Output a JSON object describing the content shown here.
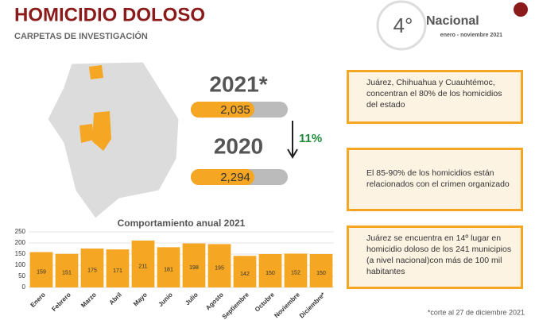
{
  "header": {
    "title": "HOMICIDIO DOLOSO",
    "subtitle": "CARPETAS DE INVESTIGACIÓN"
  },
  "rank": {
    "position": "4°",
    "label": "Nacional",
    "period": "enero - noviembre 2021"
  },
  "stats": {
    "year_current": "2021*",
    "value_current": "2,035",
    "year_previous": "2020",
    "value_previous": "2,294",
    "change": "11%"
  },
  "notes": [
    "Juárez, Chihuahua y Cuauhtémoc, concentran el 80% de los homicidios del estado",
    "El 85-90% de los homicidios están relacionados con el crimen organizado",
    "Juárez se encuentra en 14º lugar en homicidio doloso de los 241 municipios (a nivel nacional)con más de 100 mil habitantes"
  ],
  "footnote": "*corte al 27 de diciembre 2021",
  "chart_data": {
    "type": "bar",
    "title": "Comportamiento anual 2021",
    "categories": [
      "Enero",
      "Febrero",
      "Marzo",
      "Abril",
      "Mayo",
      "Junio",
      "Julio",
      "Agosto",
      "Septiembre",
      "Octubre",
      "Noviembre",
      "Diciembre*"
    ],
    "values": [
      159,
      151,
      175,
      171,
      211,
      181,
      198,
      195,
      142,
      150,
      152,
      150
    ],
    "color": "#f5a623",
    "ylim": [
      0,
      250
    ],
    "yticks": [
      0,
      50,
      100,
      150,
      200,
      250
    ],
    "grid": true
  }
}
